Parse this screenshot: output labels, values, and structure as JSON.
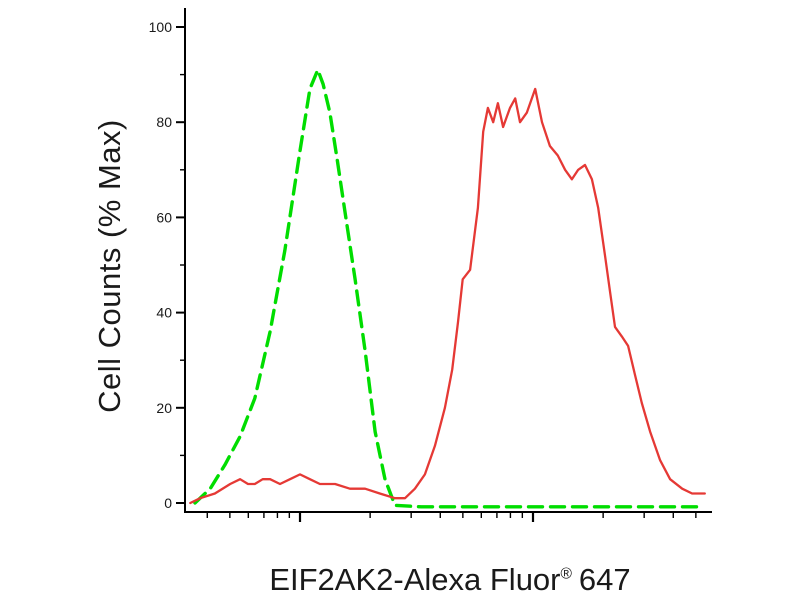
{
  "chart_data": {
    "type": "line",
    "subtype": "flow-cytometry-histogram",
    "title": "",
    "ylabel": "Cell Counts (% Max)",
    "xlabel": "EIF2AK2-Alexa Fluor® 647",
    "xlabel_parts": {
      "main": "EIF2AK2-Alexa Fluor",
      "registered": "®",
      "suffix": "647"
    },
    "ylim": [
      0,
      100
    ],
    "y_ticks": [
      0,
      20,
      40,
      60,
      80,
      100
    ],
    "y_minor_ticks": [
      10,
      30,
      50,
      70,
      90
    ],
    "x_axis": {
      "scale": "log",
      "tick_labels": []
    },
    "axis_color": "#000000",
    "series": [
      {
        "name": "green-dashed",
        "color": "#00dd00",
        "style": "dashed",
        "line_width": 3.4,
        "points": [
          [
            1.9,
            0
          ],
          [
            4.8,
            3
          ],
          [
            7.6,
            8
          ],
          [
            10.5,
            14
          ],
          [
            13.3,
            22
          ],
          [
            16.2,
            36
          ],
          [
            19.0,
            53
          ],
          [
            21.9,
            74
          ],
          [
            23.8,
            87
          ],
          [
            25.3,
            91
          ],
          [
            26.3,
            88
          ],
          [
            27.6,
            82
          ],
          [
            29.0,
            72
          ],
          [
            30.5,
            61
          ],
          [
            32.4,
            47
          ],
          [
            34.3,
            32
          ],
          [
            36.2,
            15
          ],
          [
            38.1,
            5
          ],
          [
            40.0,
            -0.5
          ],
          [
            45,
            -0.8
          ],
          [
            55,
            -0.8
          ],
          [
            65,
            -0.8
          ],
          [
            75,
            -0.8
          ],
          [
            85,
            -0.8
          ],
          [
            95,
            -0.8
          ],
          [
            98,
            -0.8
          ]
        ]
      },
      {
        "name": "red-solid",
        "color": "#e53935",
        "style": "solid",
        "line_width": 2.3,
        "points": [
          [
            1.0,
            0
          ],
          [
            2.9,
            1
          ],
          [
            5.7,
            2
          ],
          [
            8.6,
            4
          ],
          [
            10.5,
            5
          ],
          [
            12.0,
            4
          ],
          [
            13.3,
            4
          ],
          [
            14.8,
            5
          ],
          [
            16.2,
            5
          ],
          [
            18.1,
            4
          ],
          [
            20.0,
            5
          ],
          [
            21.9,
            6
          ],
          [
            23.8,
            5
          ],
          [
            25.7,
            4
          ],
          [
            28.6,
            4
          ],
          [
            31.4,
            3
          ],
          [
            34.3,
            3
          ],
          [
            37.1,
            2
          ],
          [
            40.0,
            1
          ],
          [
            41.9,
            1
          ],
          [
            43.8,
            3
          ],
          [
            45.7,
            6
          ],
          [
            47.6,
            12
          ],
          [
            49.5,
            20
          ],
          [
            50.9,
            28
          ],
          [
            52.0,
            38
          ],
          [
            52.9,
            47
          ],
          [
            54.3,
            49
          ],
          [
            55.8,
            62
          ],
          [
            56.8,
            78
          ],
          [
            57.7,
            83
          ],
          [
            58.7,
            80
          ],
          [
            59.6,
            84
          ],
          [
            60.6,
            79
          ],
          [
            61.9,
            83
          ],
          [
            62.9,
            85
          ],
          [
            63.8,
            80
          ],
          [
            65.1,
            82
          ],
          [
            66.7,
            87
          ],
          [
            68.0,
            80
          ],
          [
            69.5,
            75
          ],
          [
            71.0,
            73
          ],
          [
            72.4,
            70
          ],
          [
            73.7,
            68
          ],
          [
            74.9,
            70
          ],
          [
            76.2,
            71
          ],
          [
            77.5,
            68
          ],
          [
            78.7,
            62
          ],
          [
            80.0,
            52
          ],
          [
            81.0,
            44
          ],
          [
            81.9,
            37
          ],
          [
            83.2,
            35
          ],
          [
            84.4,
            33
          ],
          [
            85.7,
            27
          ],
          [
            87.0,
            21
          ],
          [
            88.6,
            15
          ],
          [
            90.5,
            9
          ],
          [
            92.4,
            5
          ],
          [
            94.7,
            3
          ],
          [
            96.6,
            2
          ],
          [
            99.0,
            2
          ]
        ]
      }
    ]
  }
}
